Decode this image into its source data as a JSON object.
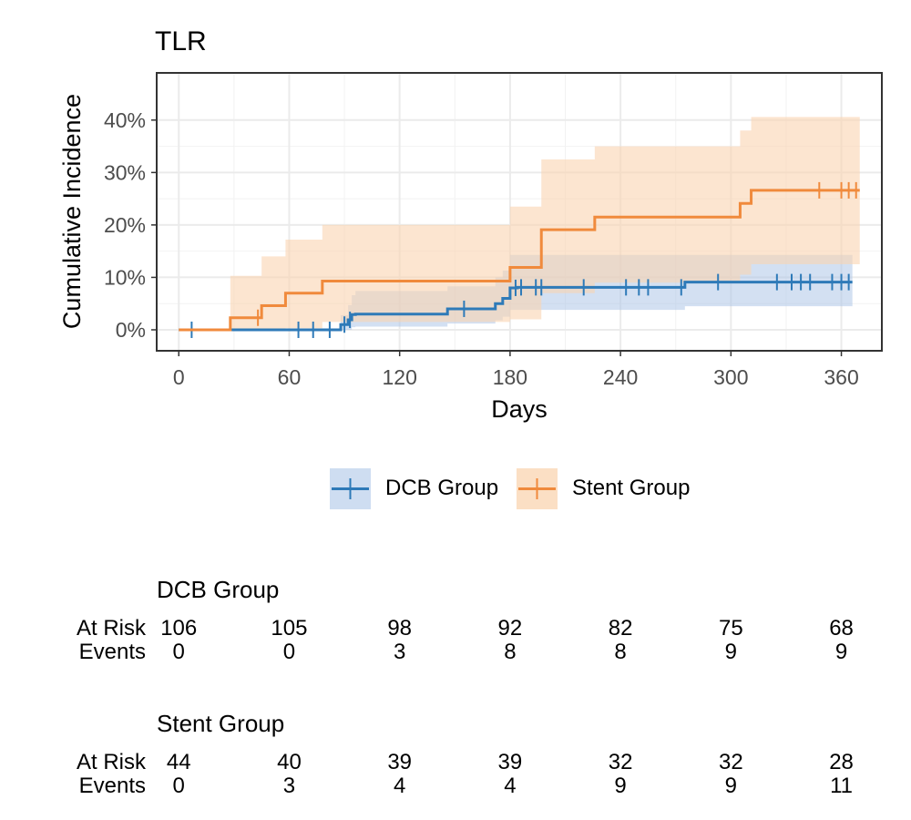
{
  "chart_data": {
    "type": "line",
    "subtype": "kaplan-meier cumulative incidence (step) with confidence bands",
    "title": "TLR",
    "xlabel": "Days",
    "ylabel": "Cumulative Incidence",
    "xlim": [
      -12,
      382
    ],
    "ylim": [
      -4,
      49
    ],
    "x_ticks": [
      0,
      60,
      120,
      180,
      240,
      300,
      360
    ],
    "y_ticks": [
      0,
      10,
      20,
      30,
      40
    ],
    "y_tick_labels": [
      "0%",
      "10%",
      "20%",
      "30%",
      "40%"
    ],
    "grid": true,
    "legend_position": "bottom",
    "series": [
      {
        "name": "DCB Group",
        "color": "#2e7ab8",
        "band_color": "#aec7e8",
        "step_x": [
          0,
          88,
          92,
          94,
          96,
          146,
          172,
          176,
          180,
          184,
          275,
          366
        ],
        "step_y": [
          0,
          1.0,
          1.9,
          2.9,
          3.0,
          4.0,
          5.0,
          6.0,
          8.0,
          8.1,
          9.1,
          9.1
        ],
        "lower": [
          0,
          0,
          0,
          0.5,
          0.6,
          1.2,
          1.8,
          2.5,
          3.8,
          3.8,
          4.5,
          4.5
        ],
        "upper": [
          0,
          2.8,
          4.7,
          6.6,
          7.4,
          8.3,
          10.0,
          11.3,
          14.3,
          14.3,
          14.3,
          14.3
        ],
        "censor_x": [
          7,
          65,
          73,
          82,
          90,
          93,
          155,
          183,
          186,
          194,
          197,
          220,
          243,
          250,
          255,
          273,
          293,
          325,
          333,
          338,
          343,
          355,
          360,
          364
        ],
        "at_risk": [
          106,
          105,
          98,
          92,
          82,
          75,
          68
        ],
        "events": [
          0,
          0,
          3,
          8,
          8,
          9,
          9
        ]
      },
      {
        "name": "Stent Group",
        "color": "#f08a3c",
        "band_color": "#fad4b0",
        "step_x": [
          0,
          28,
          45,
          58,
          78,
          180,
          197,
          226,
          305,
          311,
          370
        ],
        "step_y": [
          0,
          2.3,
          4.6,
          7.0,
          9.3,
          11.9,
          19.1,
          21.5,
          24.1,
          26.6,
          26.6
        ],
        "lower": [
          0,
          0,
          0,
          0.3,
          1.5,
          2.0,
          7.0,
          9.0,
          10.5,
          12.5,
          12.5
        ],
        "upper": [
          0,
          10.3,
          14.0,
          17.2,
          20.0,
          23.5,
          32.5,
          35.0,
          38.0,
          40.6,
          40.6
        ],
        "censor_x": [
          43,
          348,
          360,
          364,
          368
        ],
        "at_risk": [
          44,
          40,
          39,
          39,
          32,
          32,
          28
        ],
        "events": [
          0,
          3,
          4,
          4,
          9,
          9,
          11
        ]
      }
    ]
  },
  "risk_table": {
    "row_labels": {
      "at_risk": "At Risk",
      "events": "Events"
    }
  }
}
